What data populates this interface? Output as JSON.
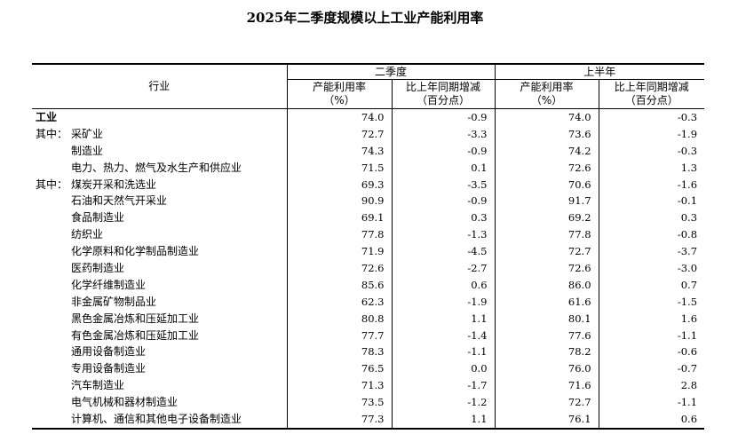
{
  "title": "2025年二季度规模以上工业产能利用率",
  "header": {
    "industry": "行业",
    "q2": "二季度",
    "h1": "上半年",
    "rate_label": "产能利用率",
    "rate_unit": "（%）",
    "change_label": "比上年同期增减",
    "change_unit": "（百分点）"
  },
  "rows": [
    {
      "prefix": "",
      "name": "工业",
      "q2_rate": "74.0",
      "q2_change": "-0.9",
      "h1_rate": "74.0",
      "h1_change": "-0.3"
    },
    {
      "prefix": "其中：",
      "name": "采矿业",
      "q2_rate": "72.7",
      "q2_change": "-3.3",
      "h1_rate": "73.6",
      "h1_change": "-1.9"
    },
    {
      "prefix": "",
      "name": "制造业",
      "q2_rate": "74.3",
      "q2_change": "-0.9",
      "h1_rate": "74.2",
      "h1_change": "-0.3"
    },
    {
      "prefix": "",
      "name": "电力、热力、燃气及水生产和供应业",
      "q2_rate": "71.5",
      "q2_change": "0.1",
      "h1_rate": "72.6",
      "h1_change": "1.3"
    },
    {
      "prefix": "其中：",
      "name": "煤炭开采和洗选业",
      "q2_rate": "69.3",
      "q2_change": "-3.5",
      "h1_rate": "70.6",
      "h1_change": "-1.6"
    },
    {
      "prefix": "",
      "name": "石油和天然气开采业",
      "q2_rate": "90.9",
      "q2_change": "-0.9",
      "h1_rate": "91.7",
      "h1_change": "-0.1"
    },
    {
      "prefix": "",
      "name": "食品制造业",
      "q2_rate": "69.1",
      "q2_change": "0.3",
      "h1_rate": "69.2",
      "h1_change": "0.3"
    },
    {
      "prefix": "",
      "name": "纺织业",
      "q2_rate": "77.8",
      "q2_change": "-1.3",
      "h1_rate": "77.8",
      "h1_change": "-0.8"
    },
    {
      "prefix": "",
      "name": "化学原料和化学制品制造业",
      "q2_rate": "71.9",
      "q2_change": "-4.5",
      "h1_rate": "72.7",
      "h1_change": "-3.7"
    },
    {
      "prefix": "",
      "name": "医药制造业",
      "q2_rate": "72.6",
      "q2_change": "-2.7",
      "h1_rate": "72.6",
      "h1_change": "-3.0"
    },
    {
      "prefix": "",
      "name": "化学纤维制造业",
      "q2_rate": "85.6",
      "q2_change": "0.6",
      "h1_rate": "86.0",
      "h1_change": "0.7"
    },
    {
      "prefix": "",
      "name": "非金属矿物制品业",
      "q2_rate": "62.3",
      "q2_change": "-1.9",
      "h1_rate": "61.6",
      "h1_change": "-1.5"
    },
    {
      "prefix": "",
      "name": "黑色金属冶炼和压延加工业",
      "q2_rate": "80.8",
      "q2_change": "1.1",
      "h1_rate": "80.1",
      "h1_change": "1.6"
    },
    {
      "prefix": "",
      "name": "有色金属冶炼和压延加工业",
      "q2_rate": "77.7",
      "q2_change": "-1.4",
      "h1_rate": "77.6",
      "h1_change": "-1.1"
    },
    {
      "prefix": "",
      "name": "通用设备制造业",
      "q2_rate": "78.3",
      "q2_change": "-1.1",
      "h1_rate": "78.2",
      "h1_change": "-0.6"
    },
    {
      "prefix": "",
      "name": "专用设备制造业",
      "q2_rate": "76.5",
      "q2_change": "0.0",
      "h1_rate": "76.0",
      "h1_change": "-0.7"
    },
    {
      "prefix": "",
      "name": "汽车制造业",
      "q2_rate": "71.3",
      "q2_change": "-1.7",
      "h1_rate": "71.6",
      "h1_change": "2.8"
    },
    {
      "prefix": "",
      "name": "电气机械和器材制造业",
      "q2_rate": "73.5",
      "q2_change": "-1.2",
      "h1_rate": "72.7",
      "h1_change": "-1.1"
    },
    {
      "prefix": "",
      "name": "计算机、通信和其他电子设备制造业",
      "q2_rate": "77.3",
      "q2_change": "1.1",
      "h1_rate": "76.1",
      "h1_change": "0.6"
    }
  ]
}
